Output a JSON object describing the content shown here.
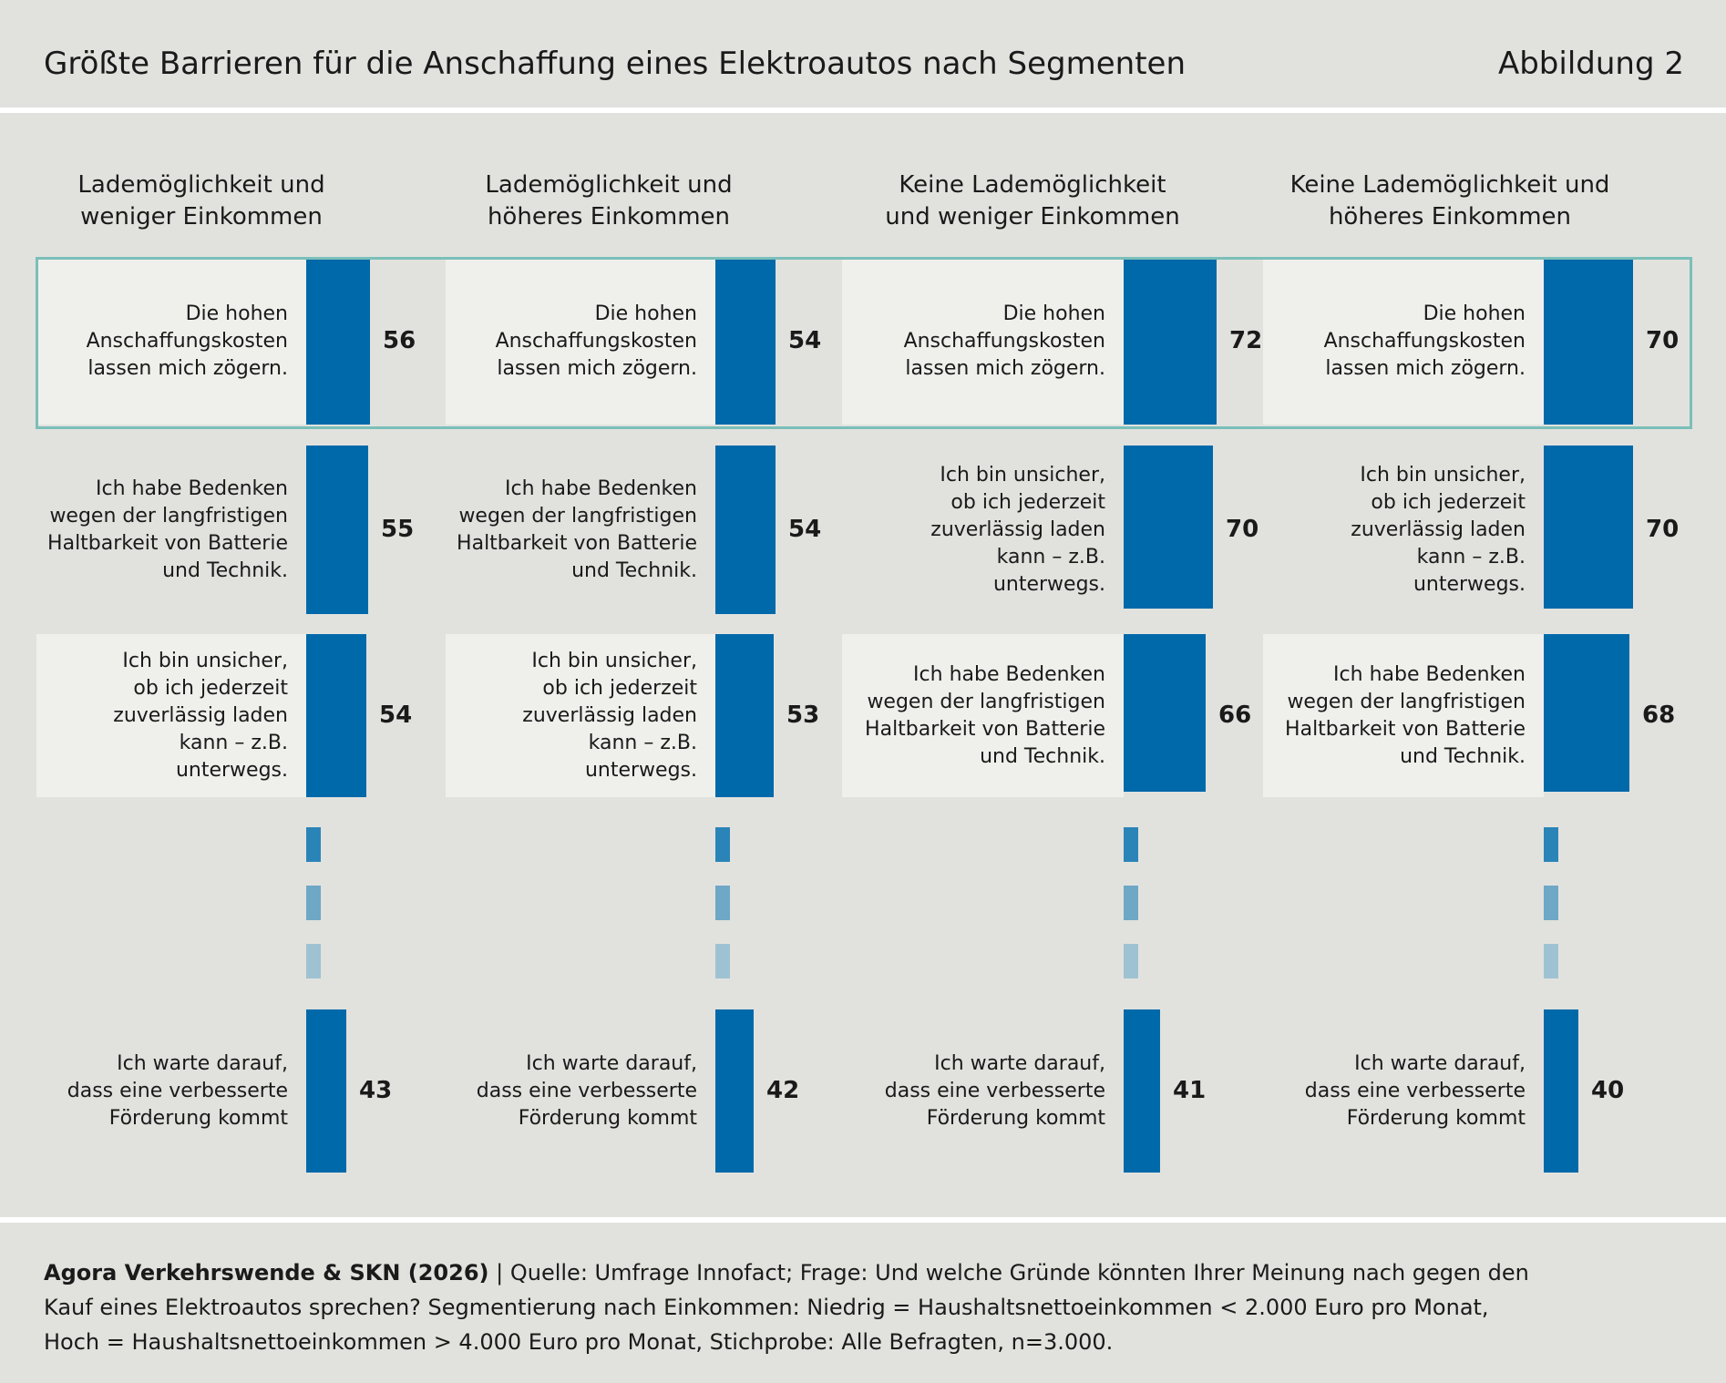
{
  "header": {
    "title": "Größte Barrieren für die Anschaffung eines Elektroautos nach Segmenten",
    "figure_label": "Abbildung 2"
  },
  "colors": {
    "bar": "#0069aa",
    "highlight_outline": "#7bbfb9",
    "stub_1": "#2b84b8",
    "stub_2": "#6fa7c6",
    "stub_3": "#9fc2d3",
    "background": "#e1e2de",
    "label_box": "#eff0ec"
  },
  "chart_data": {
    "type": "bar",
    "orientation": "horizontal",
    "segments": [
      {
        "title": "Lademöglichkeit und\nweniger Einkommen",
        "items": [
          {
            "label": "Die hohen \nAnschaffungskosten\nlassen mich zögern.",
            "value": 56
          },
          {
            "label": "Ich habe Bedenken\nwegen der langfristigen\nHaltbarkeit von Batterie\nund Technik.",
            "value": 55
          },
          {
            "label": "Ich bin unsicher,\nob ich jederzeit\nzuverlässig laden \nkann – z.B. \nunterwegs.",
            "value": 54
          },
          {
            "label": "Ich warte darauf,\ndass eine verbesserte\nFörderung kommt",
            "value": 43
          }
        ]
      },
      {
        "title": "Lademöglichkeit und\nhöheres Einkommen",
        "items": [
          {
            "label": "Die hohen \nAnschaffungskosten\nlassen mich zögern.",
            "value": 54
          },
          {
            "label": "Ich habe Bedenken\nwegen der langfristigen\nHaltbarkeit von Batterie\nund Technik.",
            "value": 54
          },
          {
            "label": "Ich bin unsicher,\nob ich jederzeit\nzuverlässig laden \nkann – z.B. \nunterwegs.",
            "value": 53
          },
          {
            "label": "Ich warte darauf,\ndass eine verbesserte\nFörderung kommt",
            "value": 42
          }
        ]
      },
      {
        "title": "Keine Lademöglichkeit\nund weniger Einkommen",
        "items": [
          {
            "label": "Die hohen \nAnschaffungskosten\nlassen mich zögern.",
            "value": 72
          },
          {
            "label": "Ich bin unsicher,\nob ich jederzeit\nzuverlässig laden \nkann – z.B. \nunterwegs.",
            "value": 70
          },
          {
            "label": "Ich habe Bedenken\nwegen der langfristigen\nHaltbarkeit von Batterie\nund Technik.",
            "value": 66
          },
          {
            "label": "Ich warte darauf,\ndass eine verbesserte\nFörderung kommt",
            "value": 41
          }
        ]
      },
      {
        "title": "Keine Lademöglichkeit und\nhöheres Einkommen",
        "items": [
          {
            "label": "Die hohen \nAnschaffungskosten\nlassen mich zögern.",
            "value": 70
          },
          {
            "label": "Ich bin unsicher,\nob ich jederzeit\nzuverlässig laden \nkann – z.B. \nunterwegs.",
            "value": 70
          },
          {
            "label": "Ich habe Bedenken\nwegen der langfristigen\nHaltbarkeit von Batterie\nund Technik.",
            "value": 68
          },
          {
            "label": "Ich warte darauf,\ndass eine verbesserte\nFörderung kommt",
            "value": 40
          }
        ]
      }
    ]
  },
  "footer": {
    "source_bold": "Agora Verkehrswende & SKN (2026)",
    "source_text": " | Quelle: Umfrage Innofact; Frage: Und welche Gründe könnten Ihrer Meinung nach gegen den\nKauf eines Elektroautos sprechen? Segmentierung nach Einkommen: Niedrig = Haushaltsnettoeinkommen < 2.000 Euro pro Monat,\nHoch = Haushaltsnettoeinkommen > 4.000 Euro pro Monat, Stichprobe: Alle Befragten, n=3.000."
  }
}
